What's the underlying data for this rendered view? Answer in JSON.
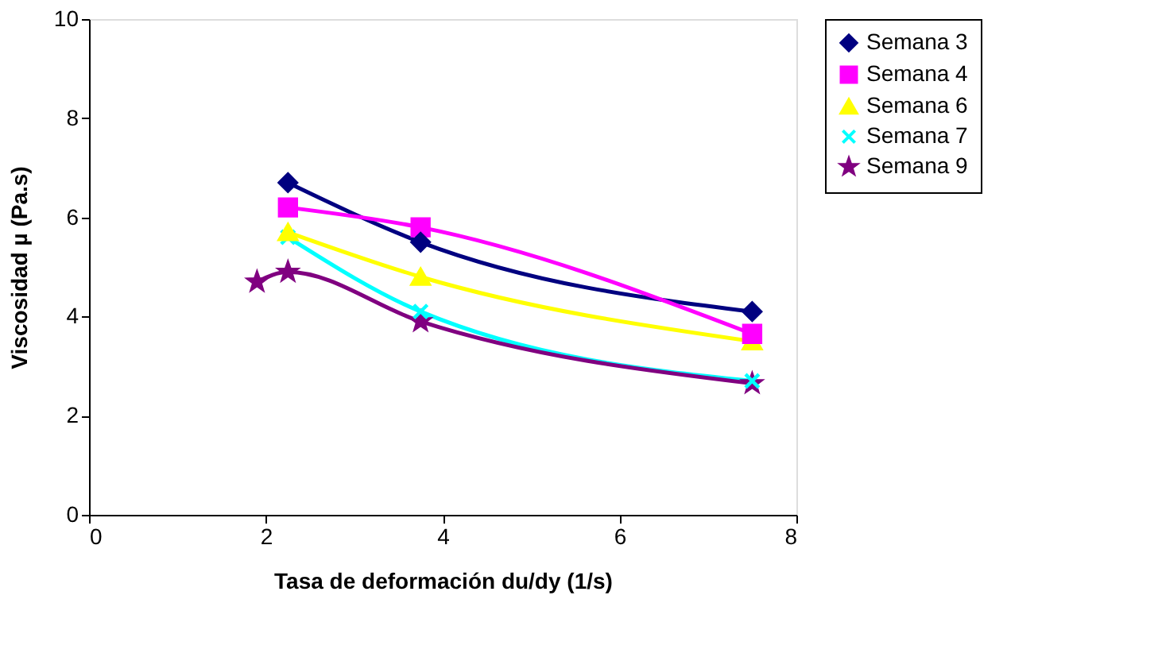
{
  "chart_data": {
    "type": "line",
    "xlabel": "Tasa de deformación du/dy (1/s)",
    "ylabel": "Viscosidad µ (Pa.s)",
    "xlim": [
      0,
      8
    ],
    "xticks": [
      0,
      2,
      4,
      6,
      8
    ],
    "ylim": [
      0,
      10
    ],
    "yticks": [
      0,
      2,
      4,
      6,
      8,
      10
    ],
    "grid": false,
    "legend": "right",
    "line_style": "solid",
    "series": [
      {
        "name": "Semana 3",
        "color": "#000080",
        "marker": "diamond",
        "x": [
          2.25,
          3.75,
          7.5
        ],
        "values": [
          6.7,
          5.5,
          4.1
        ]
      },
      {
        "name": "Semana 4",
        "color": "#ff00ff",
        "marker": "square",
        "x": [
          2.25,
          3.75,
          7.5
        ],
        "values": [
          6.2,
          5.8,
          3.65
        ]
      },
      {
        "name": "Semana 6",
        "color": "#ffff00",
        "marker": "triangle",
        "x": [
          2.25,
          3.75,
          7.5
        ],
        "values": [
          5.7,
          4.8,
          3.5
        ]
      },
      {
        "name": "Semana 7",
        "color": "#00ffff",
        "marker": "cross",
        "x": [
          2.25,
          3.75,
          7.5
        ],
        "values": [
          5.6,
          4.1,
          2.7
        ]
      },
      {
        "name": "Semana 9",
        "color": "#800080",
        "marker": "star",
        "x": [
          1.9,
          2.25,
          3.75,
          7.5
        ],
        "values": [
          4.7,
          4.9,
          3.9,
          2.65
        ]
      }
    ]
  }
}
